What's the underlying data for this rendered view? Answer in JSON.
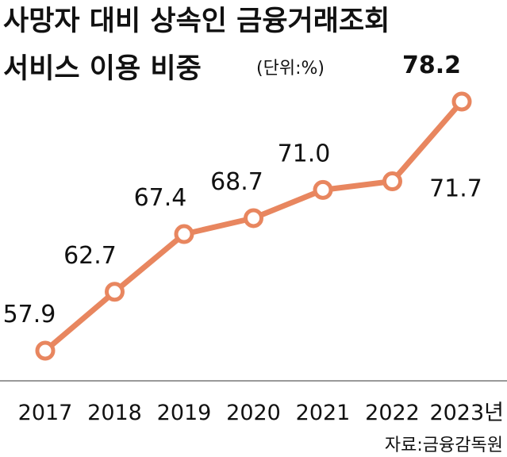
{
  "chart_data": {
    "type": "line",
    "title_line1": "사망자 대비 상속인 금융거래조회",
    "title_line2": "서비스 이용 비중",
    "unit": "(단위:%)",
    "categories": [
      "2017",
      "2018",
      "2019",
      "2020",
      "2021",
      "2022",
      "2023년"
    ],
    "values": [
      57.9,
      62.7,
      67.4,
      68.7,
      71.0,
      71.7,
      78.2
    ],
    "value_labels": [
      "57.9",
      "62.7",
      "67.4",
      "68.7",
      "71.0",
      "71.7",
      "78.2"
    ],
    "highlight_index": 6,
    "source": "자료:금융감독원",
    "colors": {
      "line": "#e8865f",
      "text": "#111111"
    }
  }
}
